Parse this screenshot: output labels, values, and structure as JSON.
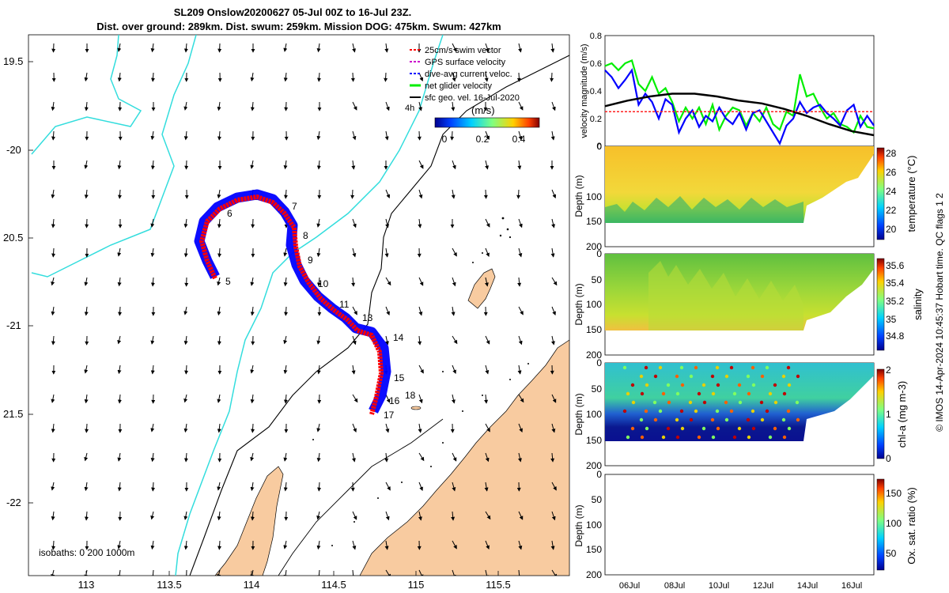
{
  "header": {
    "title_line1": "SL209 Onslow20200627 05-Jul 00Z to 16-Jul 23Z.",
    "title_line2": "Dist. over ground: 289km. Dist. swum: 259km. Mission DOG: 475km. Swum: 427km"
  },
  "colors": {
    "land": "#f8cba0",
    "coast": "#33dddd",
    "track_red": "#ff0000",
    "track_blue": "#0000ff",
    "green": "#00ee00",
    "ref_red": "#ff2020"
  },
  "map": {
    "lon_ticks": [
      "113",
      "113.5",
      "114",
      "114.5",
      "115",
      "115.5"
    ],
    "lat_ticks": [
      "19.5",
      "-20",
      "20.5",
      "-21",
      "21.5",
      "-22"
    ],
    "legend": [
      {
        "label": "25cm/s swim vector",
        "color": "#ff0000",
        "style": "dash"
      },
      {
        "label": "GPS surface velocity",
        "color": "#cc00cc",
        "style": "dash"
      },
      {
        "label": "dive-avg current veloc.",
        "color": "#0000ff",
        "style": "dash"
      },
      {
        "label": "net glider velocity",
        "color": "#00ee00",
        "style": "solid"
      },
      {
        "label": "sfc geo. vel. 16-Jul-2020",
        "color": "#000000",
        "style": "solid"
      }
    ],
    "colorbar_label": "(m/s)",
    "colorbar_ticks": [
      "0",
      "0.2",
      "0.4"
    ],
    "tide_label": "4h",
    "isobaths_label": "isobaths: 0   200  1000m",
    "day_labels": [
      "5",
      "6",
      "7",
      "8",
      "9",
      "10",
      "11",
      "13",
      "14",
      "15",
      "16",
      "17",
      "18"
    ]
  },
  "chart_data": [
    {
      "type": "line",
      "title": "",
      "ylabel": "velocity magnitude (m/s)",
      "ylim": [
        0,
        0.8
      ],
      "yticks": [
        "0",
        "0.2",
        "0.4",
        "0.6",
        "0.8"
      ],
      "series": [
        {
          "name": "net glider velocity",
          "color": "#00ee00",
          "x": [
            5.0,
            5.3,
            5.6,
            5.9,
            6.2,
            6.5,
            6.8,
            7.1,
            7.4,
            7.7,
            8.0,
            8.3,
            8.6,
            8.9,
            9.2,
            9.5,
            9.8,
            10.1,
            10.4,
            10.7,
            11.0,
            11.3,
            11.6,
            11.9,
            12.2,
            12.5,
            12.8,
            13.1,
            13.4,
            13.7,
            14.0,
            14.3,
            14.6,
            14.9,
            15.2,
            15.5,
            15.8,
            16.1,
            16.4,
            16.7,
            17.0
          ],
          "values": [
            0.58,
            0.6,
            0.55,
            0.6,
            0.62,
            0.45,
            0.4,
            0.5,
            0.38,
            0.42,
            0.32,
            0.18,
            0.28,
            0.2,
            0.28,
            0.16,
            0.3,
            0.12,
            0.22,
            0.28,
            0.26,
            0.15,
            0.24,
            0.18,
            0.28,
            0.16,
            0.12,
            0.25,
            0.22,
            0.52,
            0.36,
            0.38,
            0.28,
            0.2,
            0.24,
            0.16,
            0.14,
            0.1,
            0.22,
            0.14,
            0.13
          ]
        },
        {
          "name": "dive-avg current veloc.",
          "color": "#0000ff",
          "x": [
            5.0,
            5.3,
            5.6,
            5.9,
            6.2,
            6.5,
            6.8,
            7.1,
            7.4,
            7.7,
            8.0,
            8.3,
            8.6,
            8.9,
            9.2,
            9.5,
            9.8,
            10.1,
            10.4,
            10.7,
            11.0,
            11.3,
            11.6,
            11.9,
            12.2,
            12.5,
            12.8,
            13.1,
            13.4,
            13.7,
            14.0,
            14.3,
            14.6,
            14.9,
            15.2,
            15.5,
            15.8,
            16.1,
            16.4,
            16.7,
            17.0
          ],
          "values": [
            0.55,
            0.5,
            0.42,
            0.48,
            0.55,
            0.3,
            0.38,
            0.32,
            0.2,
            0.34,
            0.3,
            0.1,
            0.2,
            0.26,
            0.14,
            0.22,
            0.18,
            0.28,
            0.2,
            0.16,
            0.24,
            0.12,
            0.24,
            0.26,
            0.18,
            0.1,
            0.02,
            0.15,
            0.2,
            0.32,
            0.24,
            0.28,
            0.3,
            0.24,
            0.2,
            0.15,
            0.26,
            0.3,
            0.14,
            0.22,
            0.15
          ]
        },
        {
          "name": "sfc geo. vel.",
          "color": "#000000",
          "x": [
            5.0,
            6.0,
            7.0,
            8.0,
            9.0,
            10.0,
            11.0,
            12.0,
            13.0,
            14.0,
            15.0,
            16.0,
            17.0
          ],
          "values": [
            0.29,
            0.33,
            0.36,
            0.38,
            0.38,
            0.36,
            0.33,
            0.31,
            0.27,
            0.22,
            0.16,
            0.11,
            0.08
          ]
        },
        {
          "name": "25cm/s reference",
          "color": "#ff2020",
          "x": [
            5.0,
            17.0
          ],
          "values": [
            0.25,
            0.25
          ]
        }
      ]
    },
    {
      "type": "heatmap",
      "ylabel": "Depth (m)",
      "ylim": [
        200,
        0
      ],
      "yticks": [
        "0",
        "100",
        "150",
        "200"
      ],
      "colorbar_label": "temperature (°C)",
      "colorbar_ticks": [
        "20",
        "22",
        "24",
        "26",
        "28"
      ]
    },
    {
      "type": "heatmap",
      "ylabel": "Depth (m)",
      "ylim": [
        200,
        0
      ],
      "yticks": [
        "0",
        "50",
        "100",
        "150",
        "200"
      ],
      "colorbar_label": "salinity",
      "colorbar_ticks": [
        "34.8",
        "35",
        "35.2",
        "35.4",
        "35.6"
      ]
    },
    {
      "type": "heatmap",
      "ylabel": "Depth (m)",
      "ylim": [
        200,
        0
      ],
      "yticks": [
        "0",
        "50",
        "100",
        "150",
        "200"
      ],
      "colorbar_label": "chl-a (mg m-3)",
      "colorbar_ticks": [
        "0",
        "1",
        "2"
      ]
    },
    {
      "type": "heatmap",
      "ylabel": "Depth (m)",
      "ylim": [
        200,
        0
      ],
      "yticks": [
        "0",
        "50",
        "100",
        "150",
        "200"
      ],
      "colorbar_label": "Ox. sat. ratio (%)",
      "colorbar_ticks": [
        "50",
        "100",
        "150"
      ],
      "time_ticks": [
        "06Jul",
        "08Jul",
        "10Jul",
        "12Jul",
        "14Jul",
        "16Jul"
      ]
    }
  ],
  "footer": {
    "credit": "© IMOS 14-Apr-2024 10:45:37 Hobart time. QC flags 1  2"
  }
}
